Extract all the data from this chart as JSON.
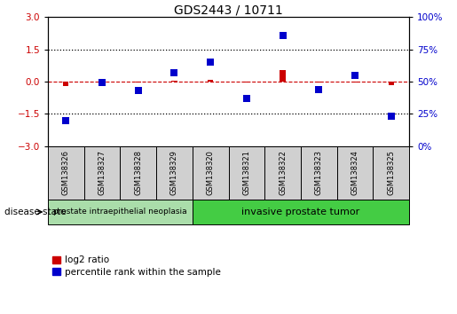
{
  "title": "GDS2443 / 10711",
  "samples": [
    "GSM138326",
    "GSM138327",
    "GSM138328",
    "GSM138329",
    "GSM138320",
    "GSM138321",
    "GSM138322",
    "GSM138323",
    "GSM138324",
    "GSM138325"
  ],
  "log2_ratio": [
    -0.22,
    -0.04,
    -0.04,
    0.05,
    0.08,
    -0.04,
    0.52,
    -0.04,
    -0.04,
    -0.18
  ],
  "percentile_rank": [
    20,
    49,
    43,
    57,
    65,
    37,
    86,
    44,
    55,
    23
  ],
  "ylim_left": [
    -3,
    3
  ],
  "ylim_right": [
    0,
    100
  ],
  "yticks_left": [
    -3,
    -1.5,
    0,
    1.5,
    3
  ],
  "yticks_right": [
    0,
    25,
    50,
    75,
    100
  ],
  "hlines": [
    1.5,
    -1.5
  ],
  "bar_color_red": "#cc0000",
  "bar_color_blue": "#0000cc",
  "bg_color": "#ffffff",
  "group1_label": "prostate intraepithelial neoplasia",
  "group2_label": "invasive prostate tumor",
  "group1_color": "#aaddaa",
  "group2_color": "#44cc44",
  "disease_state_label": "disease state",
  "legend_red": "log2 ratio",
  "legend_blue": "percentile rank within the sample",
  "group1_count": 4,
  "group2_count": 6,
  "n_samples": 10,
  "bar_width": 0.15
}
